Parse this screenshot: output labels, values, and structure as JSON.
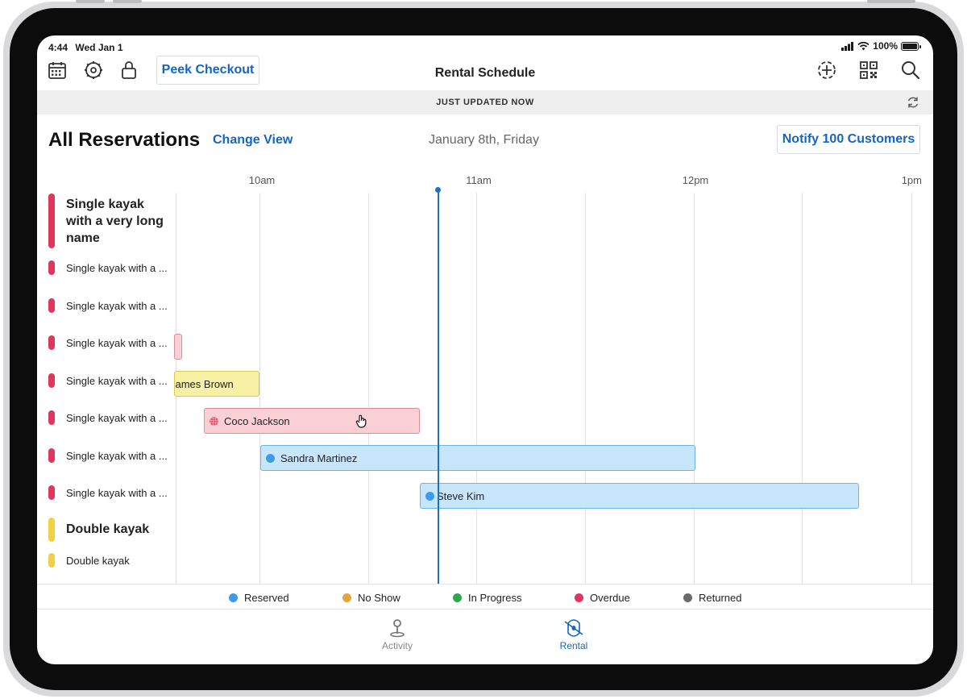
{
  "status_bar": {
    "time": "4:44",
    "date": "Wed Jan 1",
    "battery": "100%",
    "battery_level": 1.0
  },
  "nav": {
    "peek_checkout_label": "Peek Checkout",
    "title": "Rental Schedule"
  },
  "updated": {
    "text": "JUST UPDATED NOW"
  },
  "header": {
    "title": "All Reservations",
    "change_view_label": "Change View",
    "date": "January 8th, Friday",
    "notify_label": "Notify 100 Customers"
  },
  "schedule": {
    "times": [
      "10am",
      "11am",
      "12pm",
      "1pm"
    ],
    "resources": [
      {
        "name": "Single kayak with a very long name",
        "color": "#e0365e"
      },
      {
        "name": "Single kayak with a ...",
        "color": "#e0365e"
      },
      {
        "name": "Single kayak with a ...",
        "color": "#e0365e"
      },
      {
        "name": "Single kayak with a ...",
        "color": "#e0365e"
      },
      {
        "name": "Single kayak with a ...",
        "color": "#e0365e"
      },
      {
        "name": "Single kayak with a ...",
        "color": "#e0365e"
      },
      {
        "name": "Single kayak with a ...",
        "color": "#e0365e"
      },
      {
        "name": "Single kayak with a ...",
        "color": "#e0365e"
      },
      {
        "name": "Double kayak",
        "color": "#f3cf45"
      },
      {
        "name": "Double kayak",
        "color": "#f3cf45"
      }
    ],
    "bookings": [
      {
        "customer": "",
        "status": "Overdue"
      },
      {
        "customer": "James Brown",
        "status": "No Show"
      },
      {
        "customer": "Coco Jackson",
        "status": "Overdue"
      },
      {
        "customer": "Sandra Martinez",
        "status": "Reserved"
      },
      {
        "customer": "Steve Kim",
        "status": "Reserved"
      }
    ]
  },
  "legend": [
    {
      "label": "Reserved",
      "color": "#3d9be9"
    },
    {
      "label": "No Show",
      "color": "#e3a53a"
    },
    {
      "label": "In Progress",
      "color": "#2ea84f"
    },
    {
      "label": "Overdue",
      "color": "#e0365e"
    },
    {
      "label": "Returned",
      "color": "#6b6b6b"
    }
  ],
  "tabs": [
    {
      "label": "Activity",
      "icon": "map-pin-icon",
      "active": false
    },
    {
      "label": "Rental",
      "icon": "kayak-icon",
      "active": true
    }
  ]
}
